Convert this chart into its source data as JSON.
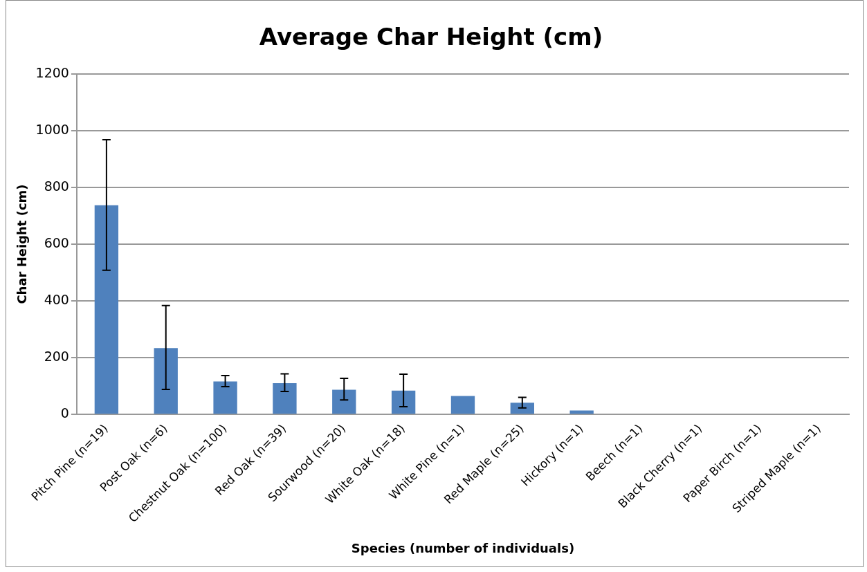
{
  "chart_data": {
    "type": "bar",
    "title": "Average Char Height (cm)",
    "xlabel": "Species (number of individuals)",
    "ylabel": "Char Height (cm)",
    "categories": [
      "Pitch Pine (n=19)",
      "Post Oak (n=6)",
      "Chestnut Oak (n=100)",
      "Red Oak (n=39)",
      "Sourwood (n=20)",
      "White Oak (n=18)",
      "White Pine (n=1)",
      "Red Maple (n=25)",
      "Hickory (n=1)",
      "Beech (n=1)",
      "Black Cherry (n=1)",
      "Paper Birch (n=1)",
      "Striped Maple (n=1)"
    ],
    "values": [
      737,
      234,
      116,
      110,
      87,
      84,
      65,
      41,
      14,
      0,
      0,
      0,
      0
    ],
    "errors": [
      [
        508,
        968
      ],
      [
        88,
        384
      ],
      [
        98,
        137
      ],
      [
        81,
        143
      ],
      [
        51,
        127
      ],
      [
        27,
        142
      ],
      null,
      [
        23,
        60
      ],
      null,
      null,
      null,
      null,
      null
    ],
    "color": "#4f81bd",
    "ylim": [
      0,
      1200
    ],
    "yticks": [
      0,
      200,
      400,
      600,
      800,
      1000,
      1200
    ],
    "grid": "y",
    "legend": false
  }
}
